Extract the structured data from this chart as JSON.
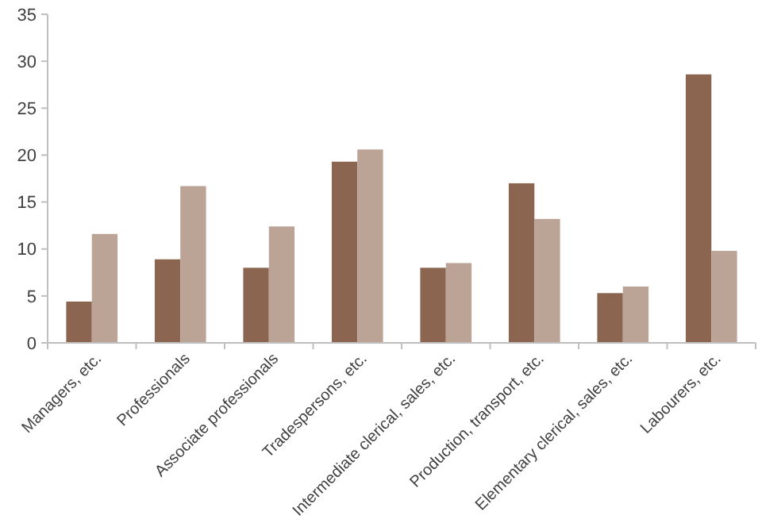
{
  "chart_data": {
    "type": "bar",
    "categories": [
      "Managers, etc.",
      "Professionals",
      "Associate professionals",
      "Tradespersons, etc.",
      "Intermediate clerical, sales, etc.",
      "Production, transport, etc.",
      "Elementary clerical, sales, etc.",
      "Labourers, etc."
    ],
    "series": [
      {
        "color": "#8b6550",
        "values": [
          4.4,
          8.9,
          8.0,
          19.3,
          8.0,
          17.0,
          5.3,
          28.6
        ]
      },
      {
        "color": "#bba396",
        "values": [
          11.6,
          16.7,
          12.4,
          20.6,
          8.5,
          13.2,
          6.0,
          9.8
        ]
      }
    ],
    "ylim": [
      0,
      35
    ],
    "yticks": [
      0,
      5,
      10,
      15,
      20,
      25,
      30,
      35
    ],
    "grid": false
  }
}
